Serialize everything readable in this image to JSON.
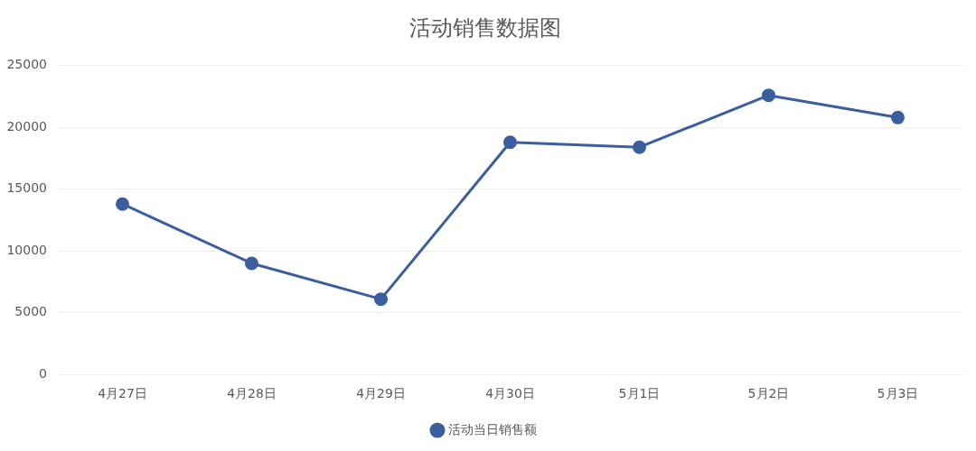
{
  "chart_data": {
    "type": "line",
    "title": "活动销售数据图",
    "categories": [
      "4月27日",
      "4月28日",
      "4月29日",
      "4月30日",
      "5月1日",
      "5月2日",
      "5月3日"
    ],
    "series": [
      {
        "name": "活动当日销售额",
        "color": "#3b5e9f",
        "values": [
          13800,
          9000,
          6100,
          18800,
          18400,
          22600,
          20800
        ]
      }
    ],
    "ylim": [
      0,
      25000
    ],
    "yticks": [
      0,
      5000,
      10000,
      15000,
      20000,
      25000
    ],
    "grid": "y",
    "legend": "bottom",
    "marker": "circle"
  }
}
